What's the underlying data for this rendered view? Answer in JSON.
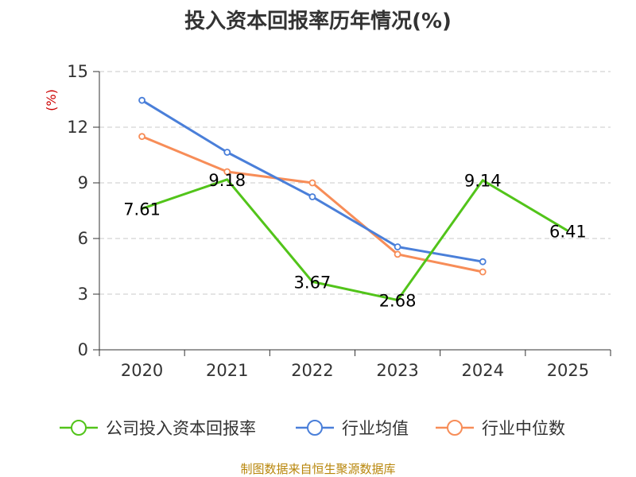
{
  "chart_data": {
    "type": "line",
    "title": "投入资本回报率历年情况(%)",
    "ylabel": "(%)",
    "xlabel": "",
    "categories": [
      "2020",
      "2021",
      "2022",
      "2023",
      "2024",
      "2025"
    ],
    "ylim": [
      0,
      15
    ],
    "yticks": [
      0,
      3,
      6,
      9,
      12,
      15
    ],
    "grid": true,
    "legend_position": "bottom",
    "series": [
      {
        "name": "公司投入资本回报率",
        "color": "#52c41a",
        "values": [
          7.61,
          9.18,
          3.67,
          2.68,
          9.14,
          6.41
        ],
        "show_labels": true,
        "label_texts": [
          "7.61",
          "9.18",
          "3.67",
          "2.68",
          "9.14",
          "6.41"
        ]
      },
      {
        "name": "行业均值",
        "color": "#4a7fd9",
        "values": [
          13.45,
          10.65,
          8.25,
          5.55,
          4.75,
          null
        ],
        "show_labels": false
      },
      {
        "name": "行业中位数",
        "color": "#f78d58",
        "values": [
          11.5,
          9.6,
          9.0,
          5.15,
          4.2,
          null
        ],
        "show_labels": false
      }
    ]
  },
  "source": "制图数据来自恒生聚源数据库"
}
